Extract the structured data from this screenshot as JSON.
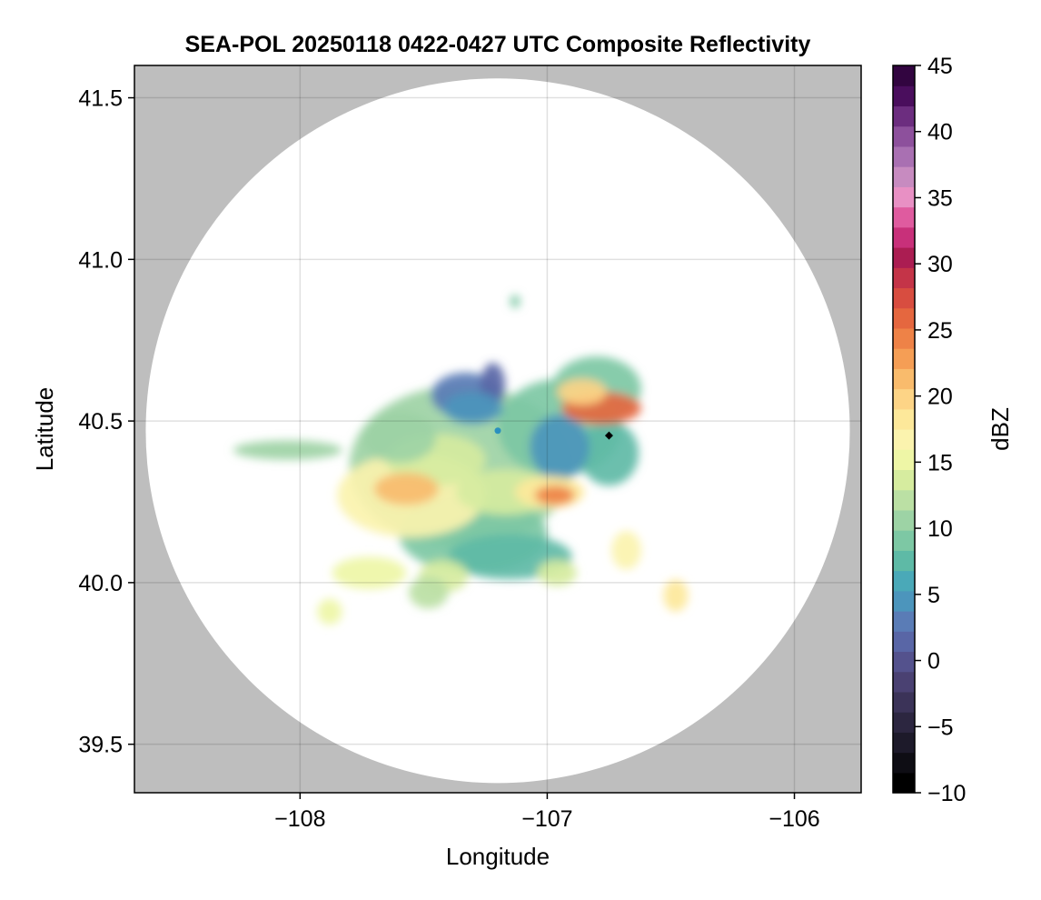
{
  "chart_data": {
    "type": "heatmap",
    "title": "SEA-POL 20250118 0422-0427 UTC Composite Reflectivity",
    "xlabel": "Longitude",
    "ylabel": "Latitude",
    "xlim": [
      -108.67,
      -105.73
    ],
    "ylim": [
      39.35,
      41.6
    ],
    "xticks": [
      -108,
      -107,
      -106
    ],
    "xtick_labels": [
      "−108",
      "−107",
      "−106"
    ],
    "yticks": [
      39.5,
      40.0,
      40.5,
      41.0,
      41.5
    ],
    "ytick_labels": [
      "39.5",
      "40.0",
      "40.5",
      "41.0",
      "41.5"
    ],
    "grid": true,
    "background_color": "#bebebe",
    "radar_coverage": {
      "center_lon": -107.2,
      "center_lat": 40.47,
      "radius_lat_deg": 1.09
    },
    "colorbar": {
      "label": "dBZ",
      "min": -10,
      "max": 45,
      "step": 2,
      "ticks": [
        -10,
        -5,
        0,
        5,
        10,
        15,
        20,
        25,
        30,
        35,
        40,
        45
      ],
      "tick_labels": [
        "−10",
        "−5",
        "0",
        "5",
        "10",
        "15",
        "20",
        "25",
        "30",
        "35",
        "40",
        "45"
      ],
      "colors": [
        "#000000",
        "#0e0d14",
        "#1d1a2a",
        "#2c2640",
        "#3b3358",
        "#4a4172",
        "#54528d",
        "#5966a6",
        "#5a7cb6",
        "#4c95bc",
        "#4aa9b8",
        "#5ebaa6",
        "#7dc8a4",
        "#9dd3a5",
        "#bbe0a4",
        "#d6ec9f",
        "#eef6a6",
        "#fbf3ae",
        "#fde89a",
        "#fdd486",
        "#f9bb6c",
        "#f59e55",
        "#ee8247",
        "#e5673f",
        "#d84d40",
        "#c43448",
        "#ab1d52",
        "#c8307a",
        "#df5b9f",
        "#e890c4",
        "#c78bc0",
        "#a970b2",
        "#8d509c",
        "#6c2d7f",
        "#4a0e5d",
        "#320540"
      ]
    },
    "markers": [
      {
        "name": "radar",
        "lon": -107.2,
        "lat": 40.47,
        "color": "#2a8fbf",
        "shape": "circle"
      },
      {
        "name": "site",
        "lon": -106.75,
        "lat": 40.455,
        "color": "#000000",
        "shape": "diamond"
      }
    ],
    "echo_cells": [
      {
        "lon": -107.35,
        "lat": 40.36,
        "rx": 0.45,
        "ry": 0.25,
        "dbz": 16
      },
      {
        "lon": -106.95,
        "lat": 40.48,
        "rx": 0.25,
        "ry": 0.15,
        "dbz": 15
      },
      {
        "lon": -106.8,
        "lat": 40.6,
        "rx": 0.18,
        "ry": 0.1,
        "dbz": 14
      },
      {
        "lon": -106.75,
        "lat": 40.4,
        "rx": 0.12,
        "ry": 0.1,
        "dbz": 12
      },
      {
        "lon": -107.3,
        "lat": 40.15,
        "rx": 0.3,
        "ry": 0.12,
        "dbz": 14
      },
      {
        "lon": -107.15,
        "lat": 40.08,
        "rx": 0.25,
        "ry": 0.07,
        "dbz": 13
      },
      {
        "lon": -107.33,
        "lat": 40.58,
        "rx": 0.14,
        "ry": 0.07,
        "dbz": 6
      },
      {
        "lon": -107.22,
        "lat": 40.61,
        "rx": 0.05,
        "ry": 0.07,
        "dbz": 4
      },
      {
        "lon": -107.3,
        "lat": 40.54,
        "rx": 0.12,
        "ry": 0.05,
        "dbz": 9
      },
      {
        "lon": -106.95,
        "lat": 40.42,
        "rx": 0.12,
        "ry": 0.1,
        "dbz": 8
      },
      {
        "lon": -107.55,
        "lat": 40.27,
        "rx": 0.3,
        "ry": 0.13,
        "dbz": 24
      },
      {
        "lon": -107.45,
        "lat": 40.38,
        "rx": 0.2,
        "ry": 0.08,
        "dbz": 20
      },
      {
        "lon": -107.6,
        "lat": 40.45,
        "rx": 0.15,
        "ry": 0.08,
        "dbz": 17
      },
      {
        "lon": -107.17,
        "lat": 40.28,
        "rx": 0.2,
        "ry": 0.07,
        "dbz": 21
      },
      {
        "lon": -106.99,
        "lat": 40.28,
        "rx": 0.14,
        "ry": 0.05,
        "dbz": 26
      },
      {
        "lon": -106.78,
        "lat": 40.54,
        "rx": 0.16,
        "ry": 0.05,
        "dbz": 36
      },
      {
        "lon": -106.86,
        "lat": 40.59,
        "rx": 0.1,
        "ry": 0.04,
        "dbz": 29
      },
      {
        "lon": -107.57,
        "lat": 40.29,
        "rx": 0.13,
        "ry": 0.05,
        "dbz": 30
      },
      {
        "lon": -106.97,
        "lat": 40.27,
        "rx": 0.08,
        "ry": 0.03,
        "dbz": 34
      },
      {
        "lon": -108.05,
        "lat": 40.41,
        "rx": 0.22,
        "ry": 0.03,
        "dbz": 16
      },
      {
        "lon": -107.72,
        "lat": 40.03,
        "rx": 0.15,
        "ry": 0.05,
        "dbz": 22
      },
      {
        "lon": -107.42,
        "lat": 40.02,
        "rx": 0.1,
        "ry": 0.05,
        "dbz": 20
      },
      {
        "lon": -107.48,
        "lat": 39.97,
        "rx": 0.08,
        "ry": 0.05,
        "dbz": 18
      },
      {
        "lon": -106.96,
        "lat": 40.03,
        "rx": 0.08,
        "ry": 0.04,
        "dbz": 21
      },
      {
        "lon": -106.68,
        "lat": 40.1,
        "rx": 0.06,
        "ry": 0.06,
        "dbz": 24
      },
      {
        "lon": -106.48,
        "lat": 39.96,
        "rx": 0.05,
        "ry": 0.05,
        "dbz": 26
      },
      {
        "lon": -107.88,
        "lat": 39.91,
        "rx": 0.05,
        "ry": 0.04,
        "dbz": 22
      },
      {
        "lon": -107.13,
        "lat": 40.87,
        "rx": 0.02,
        "ry": 0.02,
        "dbz": 14
      }
    ]
  }
}
